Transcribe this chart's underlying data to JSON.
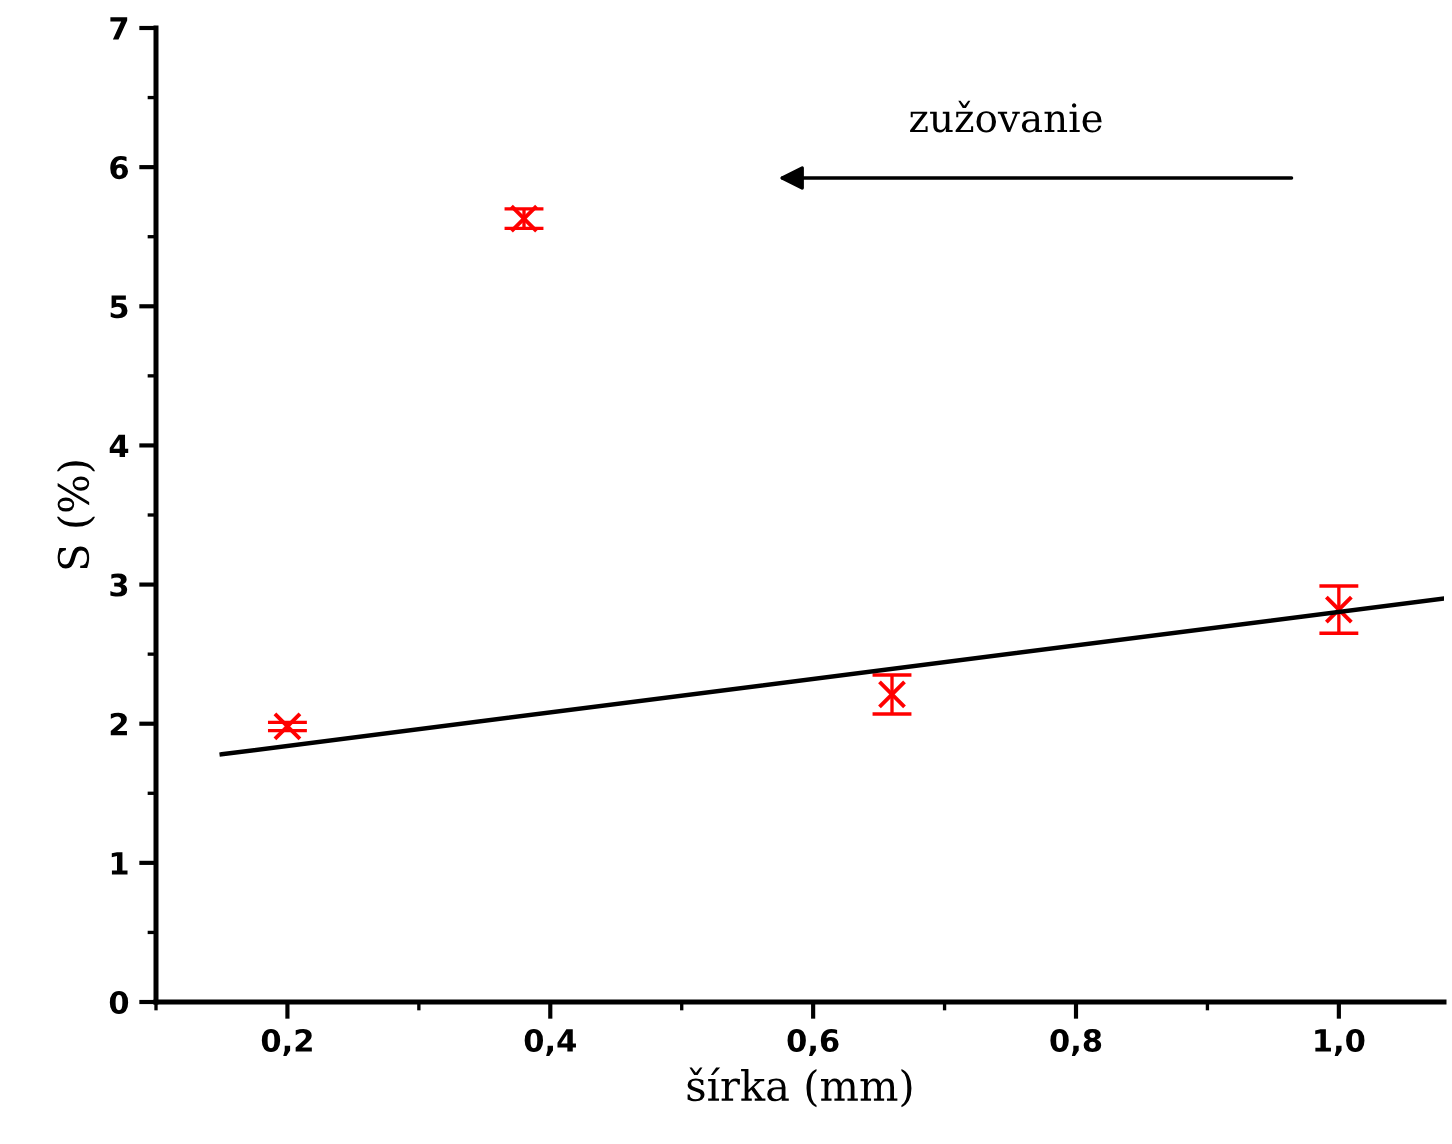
{
  "chart_data": {
    "type": "scatter",
    "xlabel": "šírka (mm)",
    "ylabel": "S (%)",
    "xlim": [
      0.1,
      1.08
    ],
    "ylim": [
      0,
      7
    ],
    "xticks": [
      {
        "value": 0.2,
        "label": "0,2"
      },
      {
        "value": 0.4,
        "label": "0,4"
      },
      {
        "value": 0.6,
        "label": "0,6"
      },
      {
        "value": 0.8,
        "label": "0,8"
      },
      {
        "value": 1.0,
        "label": "1,0"
      }
    ],
    "yticks": [
      0,
      1,
      2,
      3,
      4,
      5,
      6,
      7
    ],
    "series": [
      {
        "color": "#ff0000",
        "marker": "cross",
        "x": [
          0.2,
          0.38,
          0.66,
          1.0
        ],
        "values": [
          1.98,
          5.63,
          2.21,
          2.82
        ],
        "errors": [
          0.03,
          0.07,
          0.14,
          0.17
        ]
      },
      {
        "type": "line",
        "color": "#000000",
        "line_style": "solid",
        "x": [
          0.15,
          1.08
        ],
        "values": [
          1.78,
          2.9
        ]
      }
    ],
    "annotations": [
      "zužovanie"
    ],
    "grid": false,
    "legend": false
  }
}
